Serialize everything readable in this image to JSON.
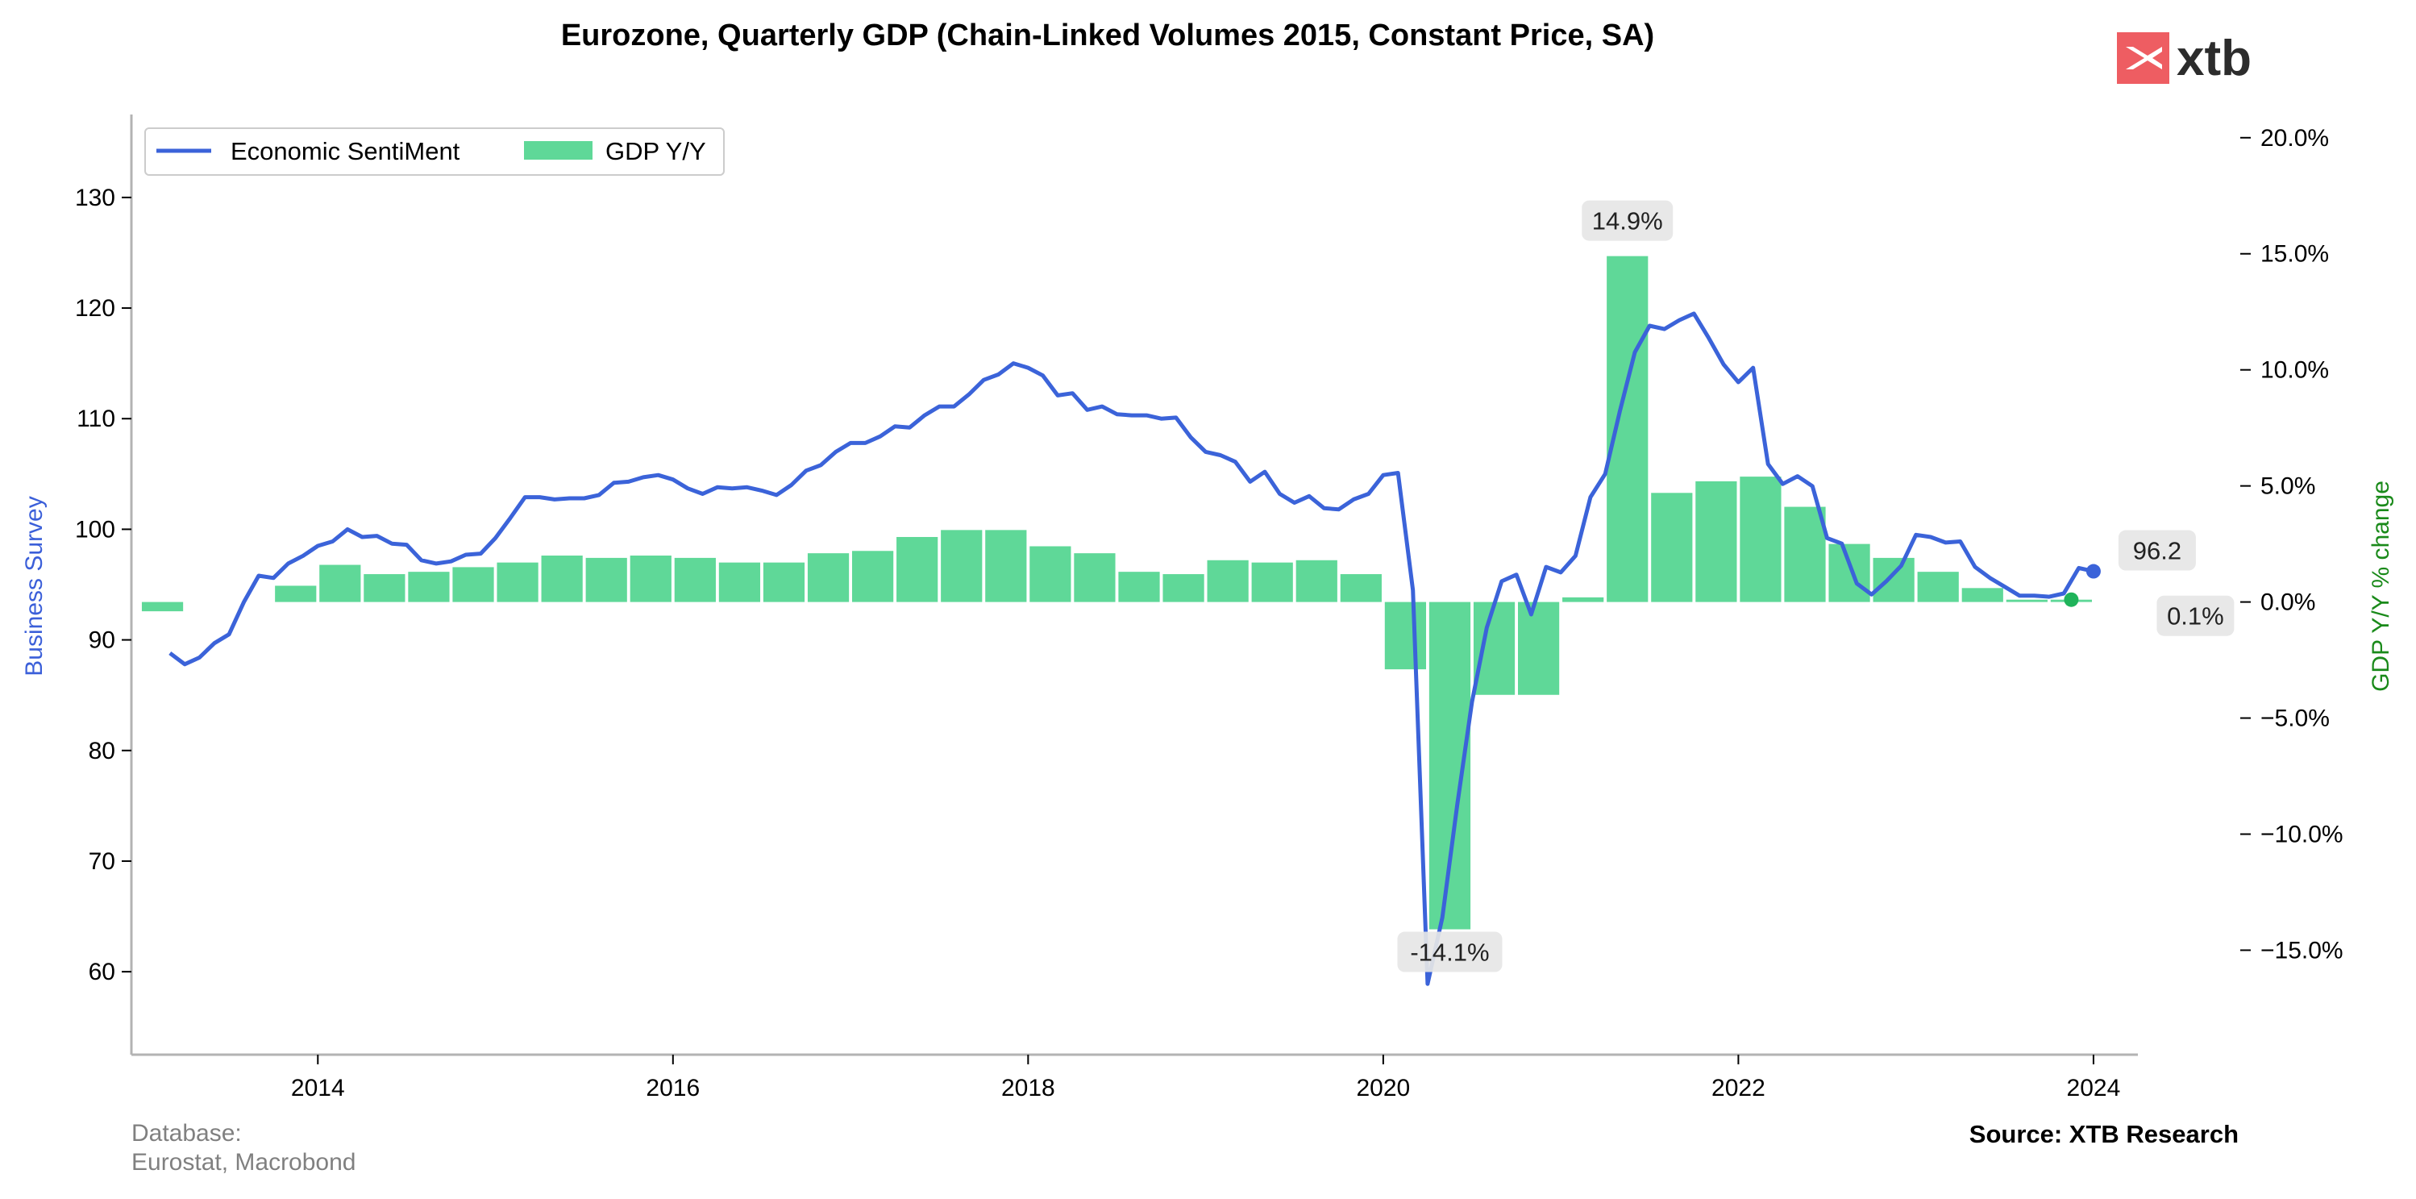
{
  "chart_data": {
    "type": "bar+line",
    "title": "Eurozone, Quarterly GDP (Chain-Linked Volumes 2015, Constant Price, SA)",
    "ylabel_left": "Business Survey",
    "ylabel_right": "GDP Y/Y % change",
    "ylim_left": [
      52.5,
      137.5
    ],
    "yticks_left": [
      60,
      70,
      80,
      90,
      100,
      110,
      120,
      130
    ],
    "ylim_right": [
      -19.5,
      21
    ],
    "yticks_right": [
      -15,
      -10,
      -5,
      0,
      5,
      10,
      15,
      20
    ],
    "ytick_labels_right": [
      "−15.0%",
      "−10.0%",
      "−5.0%",
      "0.0%",
      "5.0%",
      "10.0%",
      "15.0%",
      "20.0%"
    ],
    "xlim": [
      2012.95,
      2024.25
    ],
    "xticks": [
      2014,
      2016,
      2018,
      2020,
      2022,
      2024
    ],
    "xtick_labels": [
      "2014",
      "2016",
      "2018",
      "2020",
      "2022",
      "2024"
    ],
    "legend_placement": "top-left",
    "grid": false,
    "series": [
      {
        "name": "Economic SentiMent",
        "type": "line",
        "axis": "left",
        "color": "#3b63d9",
        "x": [
          2013.167,
          2013.25,
          2013.333,
          2013.417,
          2013.5,
          2013.583,
          2013.667,
          2013.75,
          2013.833,
          2013.917,
          2014.0,
          2014.083,
          2014.167,
          2014.25,
          2014.333,
          2014.417,
          2014.5,
          2014.583,
          2014.667,
          2014.75,
          2014.833,
          2014.917,
          2015.0,
          2015.083,
          2015.167,
          2015.25,
          2015.333,
          2015.417,
          2015.5,
          2015.583,
          2015.667,
          2015.75,
          2015.833,
          2015.917,
          2016.0,
          2016.083,
          2016.167,
          2016.25,
          2016.333,
          2016.417,
          2016.5,
          2016.583,
          2016.667,
          2016.75,
          2016.833,
          2016.917,
          2017.0,
          2017.083,
          2017.167,
          2017.25,
          2017.333,
          2017.417,
          2017.5,
          2017.583,
          2017.667,
          2017.75,
          2017.833,
          2017.917,
          2018.0,
          2018.083,
          2018.167,
          2018.25,
          2018.333,
          2018.417,
          2018.5,
          2018.583,
          2018.667,
          2018.75,
          2018.833,
          2018.917,
          2019.0,
          2019.083,
          2019.167,
          2019.25,
          2019.333,
          2019.417,
          2019.5,
          2019.583,
          2019.667,
          2019.75,
          2019.833,
          2019.917,
          2020.0,
          2020.083,
          2020.167,
          2020.25,
          2020.333,
          2020.417,
          2020.5,
          2020.583,
          2020.667,
          2020.75,
          2020.833,
          2020.917,
          2021.0,
          2021.083,
          2021.167,
          2021.25,
          2021.333,
          2021.417,
          2021.5,
          2021.583,
          2021.667,
          2021.75,
          2021.833,
          2021.917,
          2022.0,
          2022.083,
          2022.167,
          2022.25,
          2022.333,
          2022.417,
          2022.5,
          2022.583,
          2022.667,
          2022.75,
          2022.833,
          2022.917,
          2023.0,
          2023.083,
          2023.167,
          2023.25,
          2023.333,
          2023.417,
          2023.5,
          2023.583,
          2023.667,
          2023.75,
          2023.833,
          2023.917,
          2024.0
        ],
        "values": [
          88.8,
          87.8,
          88.4,
          89.7,
          90.5,
          93.4,
          95.8,
          95.6,
          96.9,
          97.6,
          98.5,
          98.9,
          100.0,
          99.3,
          99.4,
          98.7,
          98.6,
          97.2,
          96.9,
          97.1,
          97.7,
          97.8,
          99.2,
          101.0,
          102.9,
          102.9,
          102.7,
          102.8,
          102.8,
          103.1,
          104.2,
          104.3,
          104.7,
          104.9,
          104.5,
          103.7,
          103.2,
          103.8,
          103.7,
          103.8,
          103.5,
          103.1,
          104.0,
          105.3,
          105.8,
          107.0,
          107.8,
          107.8,
          108.4,
          109.3,
          109.2,
          110.3,
          111.1,
          111.1,
          112.2,
          113.5,
          114.0,
          115.0,
          114.6,
          113.9,
          112.1,
          112.3,
          110.8,
          111.1,
          110.4,
          110.3,
          110.3,
          110.0,
          110.1,
          108.3,
          107.0,
          106.7,
          106.1,
          104.3,
          105.2,
          103.2,
          102.4,
          103.0,
          101.9,
          101.8,
          102.7,
          103.2,
          104.9,
          105.1,
          94.5,
          58.9,
          64.9,
          75.1,
          84.4,
          91.1,
          95.3,
          95.9,
          92.3,
          96.6,
          96.1,
          97.6,
          102.9,
          105.0,
          110.7,
          116.0,
          118.4,
          118.1,
          118.9,
          119.5,
          117.3,
          114.9,
          113.3,
          114.6,
          105.9,
          104.1,
          104.8,
          103.9,
          99.2,
          98.7,
          95.1,
          94.1,
          95.3,
          96.7,
          99.5,
          99.3,
          98.8,
          98.9,
          96.6,
          95.6,
          94.8,
          94.0,
          94.0,
          93.9,
          94.2,
          96.5,
          96.2
        ]
      },
      {
        "name": "GDP Y/Y",
        "type": "bar",
        "axis": "right",
        "color": "#5fd898",
        "x": [
          2013.125,
          2013.875,
          2014.125,
          2014.375,
          2014.625,
          2014.875,
          2015.125,
          2015.375,
          2015.625,
          2015.875,
          2016.125,
          2016.375,
          2016.625,
          2016.875,
          2017.125,
          2017.375,
          2017.625,
          2017.875,
          2018.125,
          2018.375,
          2018.625,
          2018.875,
          2019.125,
          2019.375,
          2019.625,
          2019.875,
          2020.125,
          2020.375,
          2020.625,
          2020.875,
          2021.125,
          2021.375,
          2021.625,
          2021.875,
          2022.125,
          2022.375,
          2022.625,
          2022.875,
          2023.125,
          2023.375,
          2023.625,
          2023.875
        ],
        "values": [
          -0.4,
          0.7,
          1.6,
          1.2,
          1.3,
          1.5,
          1.7,
          2.0,
          1.9,
          2.0,
          1.9,
          1.7,
          1.7,
          2.1,
          2.2,
          2.8,
          3.1,
          3.1,
          2.4,
          2.1,
          1.3,
          1.2,
          1.8,
          1.7,
          1.8,
          1.2,
          -2.9,
          -14.1,
          -4.0,
          -4.0,
          0.2,
          14.9,
          4.7,
          5.2,
          5.4,
          4.1,
          2.5,
          1.9,
          1.3,
          0.6,
          0.1,
          0.1
        ]
      }
    ],
    "annotations": [
      {
        "text": "14.9%",
        "x": 2021.375,
        "axis": "right",
        "value": 14.9
      },
      {
        "text": "-14.1%",
        "x": 2020.375,
        "axis": "right",
        "value": -14.1
      },
      {
        "text": "96.2",
        "x": 2024.0,
        "axis": "left",
        "value": 96.2
      },
      {
        "text": "0.1%",
        "x": 2023.875,
        "axis": "right",
        "value": 0.1
      }
    ]
  },
  "footer": {
    "source_label": "Database:",
    "source_value": "Eurostat, Macrobond",
    "credit": "Source: XTB Research"
  },
  "brand": {
    "logo_text": "xtb",
    "logo_color": "#ee5d62"
  }
}
